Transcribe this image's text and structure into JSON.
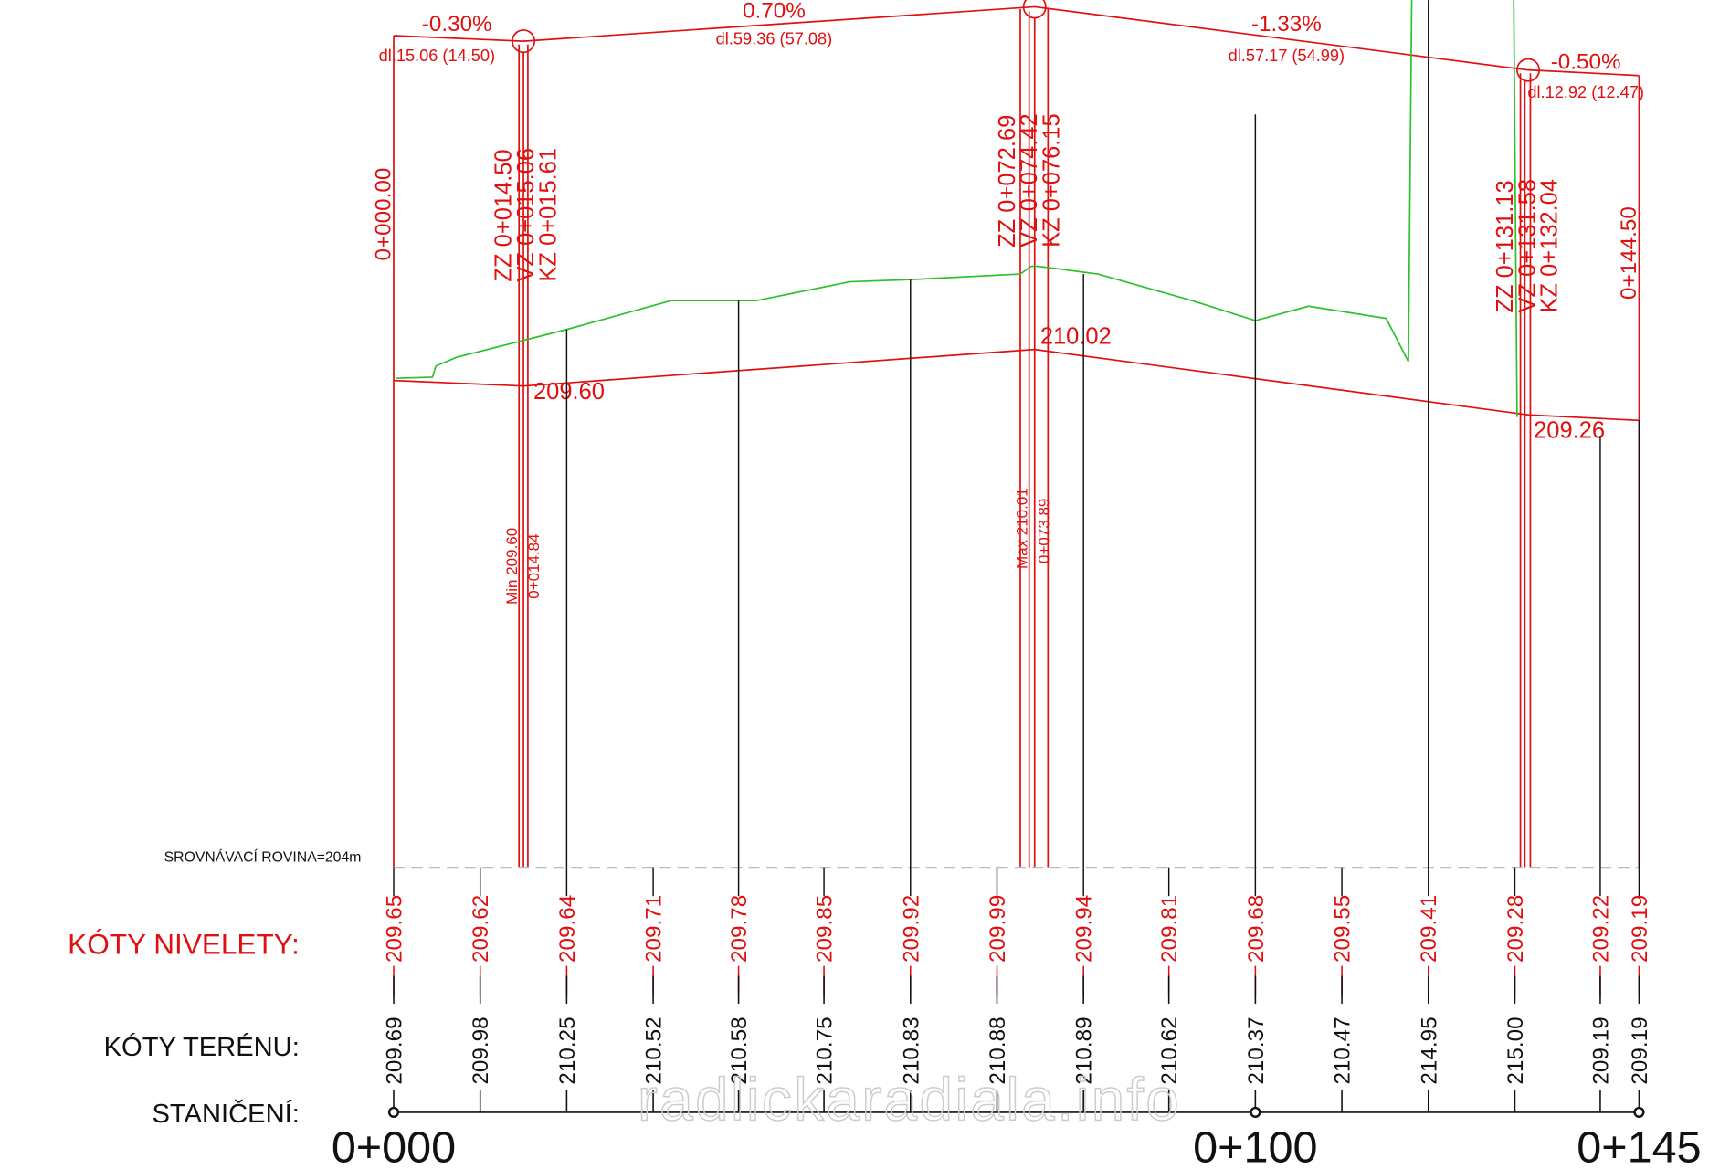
{
  "grades": [
    {
      "grade": "-0.30%",
      "length": "dl.15.06 (14.50)"
    },
    {
      "grade": "0.70%",
      "length": "dl.59.36 (57.08)"
    },
    {
      "grade": "-1.33%",
      "length": "dl.57.17 (54.99)"
    },
    {
      "grade": "-0.50%",
      "length": "dl.12.92 (12.47)"
    }
  ],
  "start_station": "0+000.00",
  "end_station": "0+144.50",
  "curves": [
    {
      "lines": [
        "ZZ 0+014.50",
        "VZ 0+015.06",
        "KZ 0+015.61"
      ],
      "elevation": "209.60"
    },
    {
      "lines": [
        "ZZ 0+072.69",
        "VZ 0+074.42",
        "KZ 0+076.15"
      ],
      "elevation": "210.02"
    },
    {
      "lines": [
        "ZZ 0+131.13",
        "VZ 0+131.58",
        "KZ 0+132.04"
      ],
      "elevation": "209.26"
    }
  ],
  "extremes": [
    {
      "label": "Min 209.60",
      "station": "0+014.84"
    },
    {
      "label": "Max 210.01",
      "station": "0+073.89"
    }
  ],
  "datum": "SROVNÁVACÍ ROVINA=204m",
  "rows": {
    "nivelety": "KÓTY NIVELETY:",
    "terenu": "KÓTY TERÉNU:",
    "staniceni": "STANIČENÍ:"
  },
  "nivelety": [
    "209.65",
    "209.62",
    "209.64",
    "209.71",
    "209.78",
    "209.85",
    "209.92",
    "209.99",
    "209.94",
    "209.81",
    "209.68",
    "209.55",
    "209.41",
    "209.28",
    "209.22",
    "209.19"
  ],
  "terenu": [
    "209.69",
    "209.98",
    "210.25",
    "210.52",
    "210.58",
    "210.75",
    "210.83",
    "210.88",
    "210.89",
    "210.62",
    "210.37",
    "210.47",
    "214.95",
    "215.00",
    "209.19",
    "209.19"
  ],
  "stations": [
    "0+000",
    "0+100",
    "0+145"
  ],
  "watermark": "radlickaradiala.info"
}
